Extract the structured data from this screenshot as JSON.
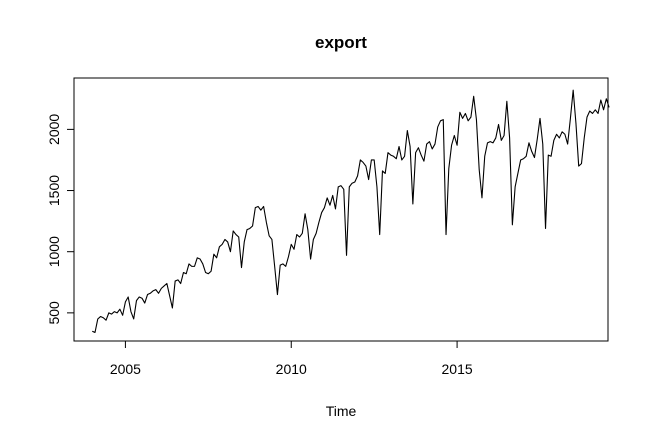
{
  "chart_data": {
    "type": "line",
    "title": "export",
    "xlabel": "Time",
    "ylabel": "",
    "xlim": [
      2003.45,
      2019.55
    ],
    "ylim": [
      270,
      2420
    ],
    "x_ticks": [
      2005,
      2010,
      2015
    ],
    "x_tick_labels": [
      "2005",
      "2010",
      "2015"
    ],
    "y_ticks": [
      500,
      1000,
      1500,
      2000
    ],
    "y_tick_labels": [
      "500",
      "1000",
      "1500",
      "2000"
    ],
    "grid": false,
    "legend": "none",
    "line_color": "#000000",
    "series": [
      {
        "start": 2004.0,
        "frequency": 12,
        "values": [
          350,
          340,
          450,
          470,
          460,
          440,
          500,
          490,
          510,
          500,
          530,
          480,
          590,
          630,
          510,
          450,
          600,
          630,
          620,
          580,
          650,
          660,
          680,
          690,
          660,
          700,
          720,
          740,
          640,
          540,
          760,
          770,
          740,
          830,
          820,
          900,
          880,
          880,
          950,
          940,
          900,
          830,
          820,
          840,
          980,
          950,
          1040,
          1060,
          1100,
          1080,
          1000,
          1170,
          1140,
          1120,
          870,
          1080,
          1180,
          1190,
          1210,
          1360,
          1370,
          1340,
          1370,
          1240,
          1130,
          1100,
          880,
          650,
          890,
          900,
          880,
          960,
          1060,
          1020,
          1140,
          1120,
          1150,
          1310,
          1180,
          940,
          1100,
          1150,
          1240,
          1320,
          1360,
          1440,
          1380,
          1460,
          1350,
          1530,
          1540,
          1510,
          970,
          1530,
          1560,
          1570,
          1620,
          1750,
          1730,
          1700,
          1590,
          1750,
          1750,
          1530,
          1140,
          1660,
          1640,
          1810,
          1790,
          1780,
          1760,
          1860,
          1750,
          1780,
          1990,
          1860,
          1390,
          1810,
          1850,
          1790,
          1740,
          1880,
          1900,
          1840,
          1880,
          2020,
          2070,
          2080,
          1140,
          1680,
          1870,
          1950,
          1870,
          2140,
          2090,
          2130,
          2070,
          2100,
          2270,
          2080,
          1670,
          1440,
          1780,
          1890,
          1900,
          1890,
          1930,
          2040,
          1910,
          1950,
          2230,
          1930,
          1220,
          1530,
          1640,
          1750,
          1760,
          1780,
          1890,
          1820,
          1770,
          1920,
          2090,
          1880,
          1190,
          1790,
          1780,
          1910,
          1960,
          1930,
          1980,
          1960,
          1880,
          2090,
          2320,
          2050,
          1700,
          1720,
          1930,
          2100,
          2150,
          2130,
          2160,
          2130,
          2240,
          2160,
          2250,
          2180
        ]
      }
    ]
  }
}
